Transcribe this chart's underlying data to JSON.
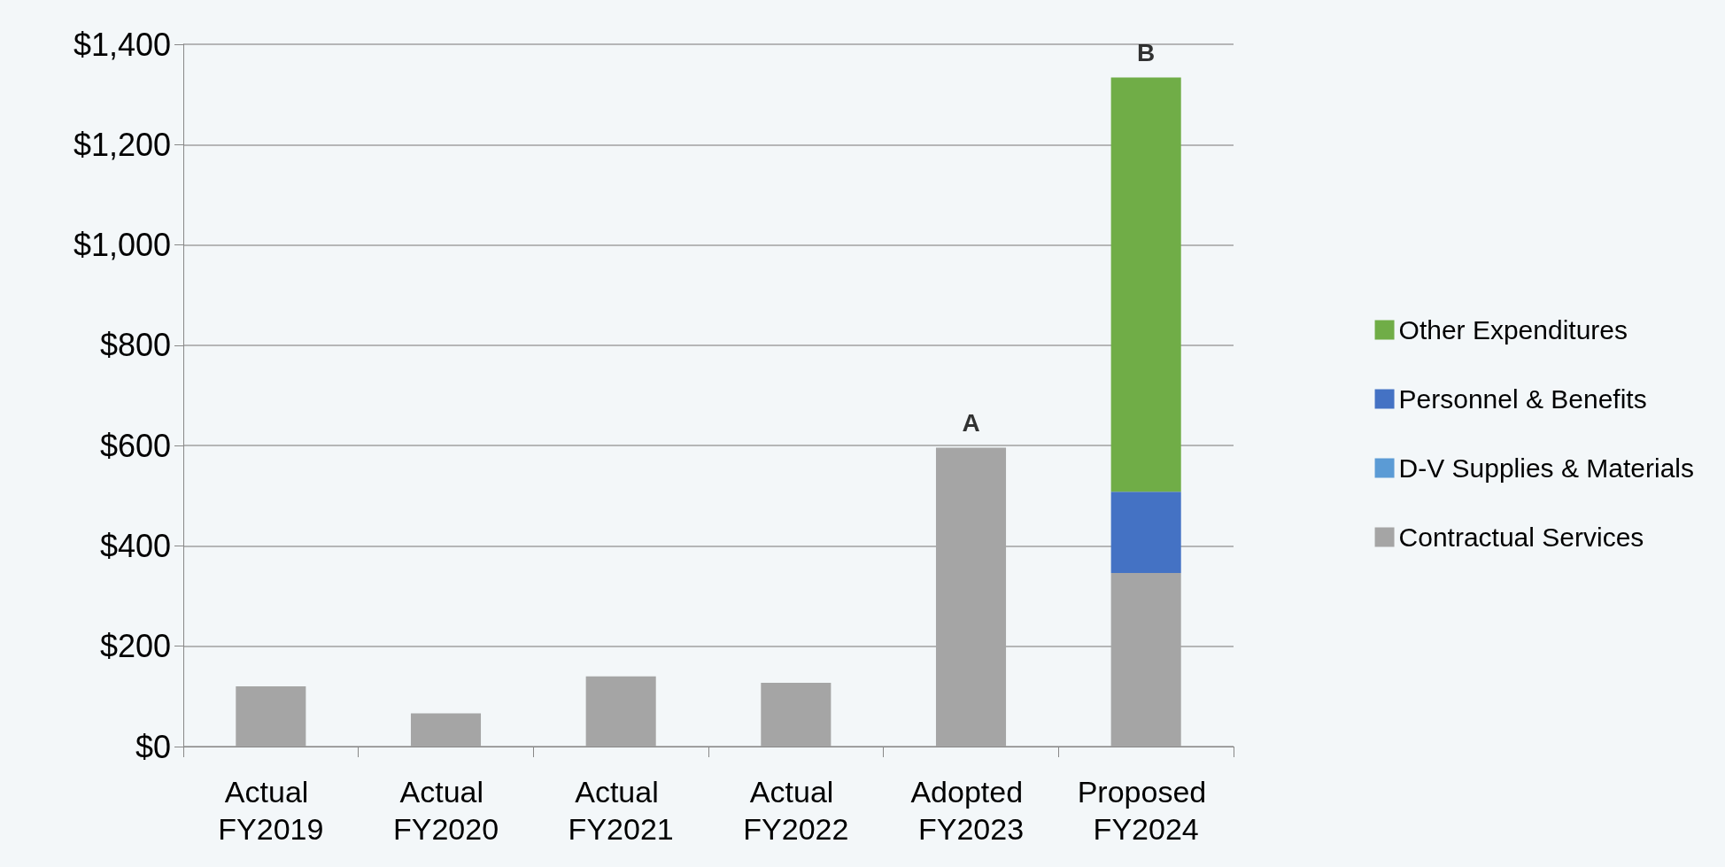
{
  "chart_data": {
    "type": "bar",
    "stacked": true,
    "categories": [
      "Actual FY2019",
      "Actual FY2020",
      "Actual FY2021",
      "Actual FY2022",
      "Adopted FY2023",
      "Proposed FY2024"
    ],
    "series": [
      {
        "name": "Contractual Services",
        "color": "#a5a5a5",
        "values": [
          120,
          66,
          140,
          127,
          596,
          346
        ]
      },
      {
        "name": "D-V Supplies & Materials",
        "color": "#5b9bd5",
        "values": [
          0,
          0,
          0,
          0,
          0,
          0
        ]
      },
      {
        "name": "Personnel & Benefits",
        "color": "#4472c4",
        "values": [
          0,
          0,
          0,
          0,
          0,
          162
        ]
      },
      {
        "name": "Other Expenditures",
        "color": "#70ad47",
        "values": [
          0,
          0,
          0,
          0,
          0,
          826
        ]
      }
    ],
    "ylim": [
      0,
      1400
    ],
    "yticks": [
      {
        "value": 0,
        "label": "$0"
      },
      {
        "value": 200,
        "label": "$200"
      },
      {
        "value": 400,
        "label": "$400"
      },
      {
        "value": 600,
        "label": "$600"
      },
      {
        "value": 800,
        "label": "$800"
      },
      {
        "value": 1000,
        "label": "$1,000"
      },
      {
        "value": 1200,
        "label": "$1,200"
      },
      {
        "value": 1400,
        "label": "$1,400"
      }
    ],
    "grid": "y",
    "legend": "right",
    "annotations": [
      {
        "text": "A",
        "x": "Adopted FY2023",
        "y": 596
      },
      {
        "text": "B",
        "x": "Proposed FY2024",
        "y": 1334
      }
    ]
  }
}
